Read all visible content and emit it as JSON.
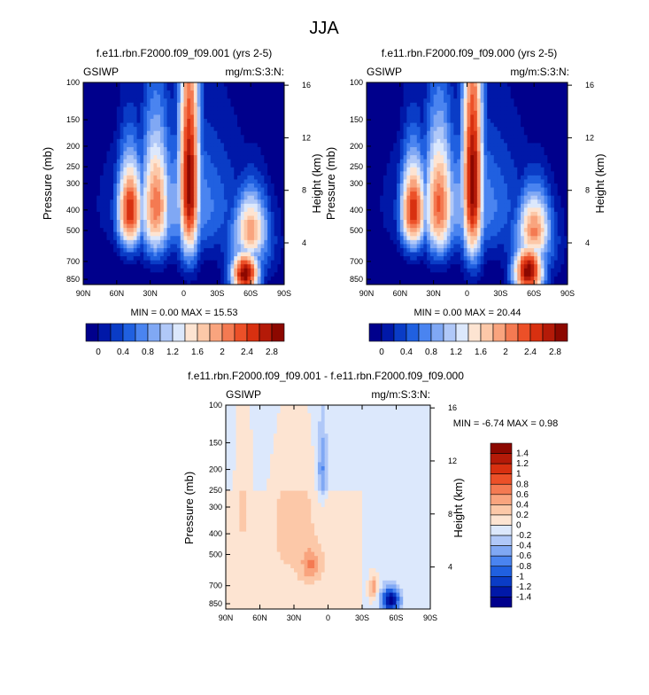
{
  "figure": {
    "title": "JJA"
  },
  "colors": {
    "abs_scale": [
      "#00008c",
      "#0018a8",
      "#0a3cc6",
      "#2060e0",
      "#4a84f0",
      "#80a8f4",
      "#b0c8f8",
      "#dce8fc",
      "#fde4d2",
      "#fcc8a8",
      "#f9a47e",
      "#f47a52",
      "#ec5028",
      "#d83010",
      "#b41a08",
      "#8c0800"
    ],
    "diff_scale": [
      "#00008c",
      "#0018a8",
      "#0a3cc6",
      "#2060e0",
      "#4a84f0",
      "#80a8f4",
      "#b0c8f8",
      "#dce8fc",
      "#fde4d2",
      "#fcc8a8",
      "#f9a47e",
      "#f47a52",
      "#ec5028",
      "#d83010",
      "#b41a08",
      "#8c0800"
    ]
  },
  "chart_data": [
    {
      "type": "heatmap",
      "title": "f.e11.rbn.F2000.f09_f09.001 (yrs 2-5)",
      "left_label": "GSIWP",
      "right_label": "mg/m:S:3:N:",
      "xlabel": "",
      "ylabel": "Pressure (mb)",
      "ylabel_right": "Height (km)",
      "x_ticks": [
        "90N",
        "60N",
        "30N",
        "0",
        "30S",
        "60S",
        "90S"
      ],
      "y_ticks": [
        "100",
        "150",
        "200",
        "250",
        "300",
        "400",
        "500",
        "700",
        "850"
      ],
      "y_ticks_right": [
        "16",
        "12",
        "8",
        "4"
      ],
      "stats": "MIN =  0.00  MAX = 15.53",
      "min": 0.0,
      "max": 15.53,
      "colorbar_labels": [
        "0",
        "0.4",
        "0.8",
        "1.2",
        "1.6",
        "2",
        "2.4",
        "2.8"
      ],
      "features": [
        {
          "lat": -5,
          "p": 300,
          "value": 3.0,
          "width_deg": 10,
          "height_mb": 350
        },
        {
          "lat": 48,
          "p": 400,
          "value": 2.6,
          "width_deg": 12,
          "height_mb": 200
        },
        {
          "lat": 25,
          "p": 380,
          "value": 2.2,
          "width_deg": 14,
          "height_mb": 260
        },
        {
          "lat": -55,
          "p": 800,
          "value": 3.0,
          "width_deg": 13,
          "height_mb": 200
        },
        {
          "lat": -60,
          "p": 500,
          "value": 2.0,
          "width_deg": 16,
          "height_mb": 200
        }
      ]
    },
    {
      "type": "heatmap",
      "title": "f.e11.rbn.F2000.f09_f09.000 (yrs 2-5)",
      "left_label": "GSIWP",
      "right_label": "mg/m:S:3:N:",
      "xlabel": "",
      "ylabel": "Pressure (mb)",
      "ylabel_right": "Height (km)",
      "x_ticks": [
        "90N",
        "60N",
        "30N",
        "0",
        "30S",
        "60S",
        "90S"
      ],
      "y_ticks": [
        "100",
        "150",
        "200",
        "250",
        "300",
        "400",
        "500",
        "700",
        "850"
      ],
      "y_ticks_right": [
        "16",
        "12",
        "8",
        "4"
      ],
      "stats": "MIN =  0.00  MAX = 20.44",
      "min": 0.0,
      "max": 20.44,
      "colorbar_labels": [
        "0",
        "0.4",
        "0.8",
        "1.2",
        "1.6",
        "2",
        "2.4",
        "2.8"
      ],
      "features": [
        {
          "lat": -5,
          "p": 300,
          "value": 3.0,
          "width_deg": 10,
          "height_mb": 360
        },
        {
          "lat": 48,
          "p": 400,
          "value": 2.6,
          "width_deg": 12,
          "height_mb": 200
        },
        {
          "lat": 25,
          "p": 380,
          "value": 2.3,
          "width_deg": 14,
          "height_mb": 260
        },
        {
          "lat": -55,
          "p": 780,
          "value": 3.0,
          "width_deg": 14,
          "height_mb": 230
        },
        {
          "lat": -60,
          "p": 500,
          "value": 2.1,
          "width_deg": 16,
          "height_mb": 200
        }
      ]
    },
    {
      "type": "heatmap",
      "title": "f.e11.rbn.F2000.f09_f09.001 - f.e11.rbn.F2000.f09_f09.000",
      "left_label": "GSIWP",
      "right_label": "mg/m:S:3:N:",
      "xlabel": "",
      "ylabel": "Pressure (mb)",
      "ylabel_right": "Height (km)",
      "x_ticks": [
        "90N",
        "60N",
        "30N",
        "0",
        "30S",
        "60S",
        "90S"
      ],
      "y_ticks": [
        "100",
        "150",
        "200",
        "250",
        "300",
        "400",
        "500",
        "700",
        "850"
      ],
      "y_ticks_right": [
        "16",
        "12",
        "8",
        "4"
      ],
      "stats": "MIN = -6.74  MAX =  0.98",
      "min": -6.74,
      "max": 0.98,
      "colorbar_labels": [
        "1.4",
        "1.2",
        "1",
        "0.8",
        "0.6",
        "0.4",
        "0.2",
        "0",
        "-0.2",
        "-0.4",
        "-0.6",
        "-0.8",
        "-1",
        "-1.2",
        "-1.4"
      ],
      "features": [
        {
          "lat": -55,
          "p": 820,
          "value": -1.5,
          "width_deg": 8,
          "height_mb": 110
        },
        {
          "lat": -40,
          "p": 720,
          "value": 0.6,
          "width_deg": 4,
          "height_mb": 90
        },
        {
          "lat": 15,
          "p": 560,
          "value": 0.5,
          "width_deg": 8,
          "height_mb": 90
        },
        {
          "lat": 5,
          "p": 200,
          "value": -0.6,
          "width_deg": 4,
          "height_mb": 90
        },
        {
          "lat": 30,
          "p": 380,
          "value": 0.15,
          "width_deg": 25,
          "height_mb": 300
        },
        {
          "lat": 75,
          "p": 250,
          "value": 0.12,
          "width_deg": 8,
          "height_mb": 300
        }
      ]
    }
  ]
}
